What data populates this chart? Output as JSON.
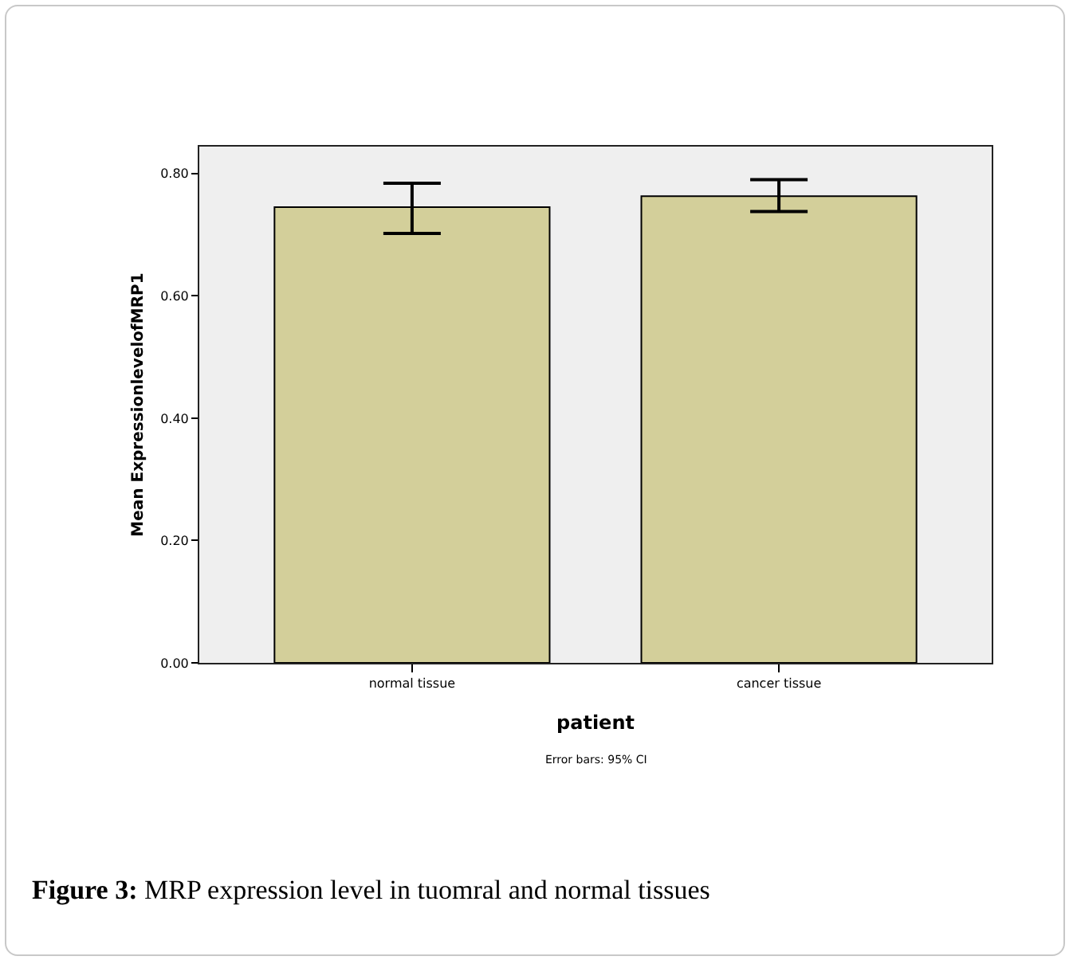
{
  "chart_data": {
    "type": "bar",
    "xlabel": "patient",
    "ylabel": "Mean ExpressionlevelofMRP1",
    "categories": [
      "normal tissue",
      "cancer tissue"
    ],
    "values": [
      0.745,
      0.763
    ],
    "errors": [
      [
        0.702,
        0.784
      ],
      [
        0.738,
        0.79
      ]
    ],
    "color": "#d3cf9a",
    "ylim": [
      0,
      0.844
    ],
    "yticks": [
      {
        "value": 0,
        "label": "0.00"
      },
      {
        "value": 0.2,
        "label": "0.20"
      },
      {
        "value": 0.4,
        "label": "0.40"
      },
      {
        "value": 0.6,
        "label": "0.60"
      },
      {
        "value": 0.8,
        "label": "0.80"
      }
    ],
    "grid": false,
    "annotations": [
      "Error bars: 95% CI",
      "Figure 3: MRP expression level in tuomral and normal tissues"
    ]
  }
}
